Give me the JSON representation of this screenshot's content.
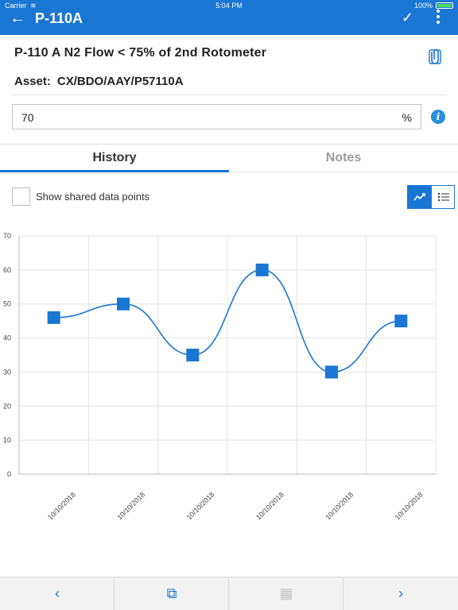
{
  "status_bar": {
    "carrier": "Carrier",
    "time": "5:04 PM",
    "battery": "100%"
  },
  "app_bar": {
    "title": "P-110A",
    "color": "#1976d2"
  },
  "task": {
    "title": "P-110 A N2 Flow < 75% of 2nd Rotometer",
    "asset_label": "Asset:",
    "asset_value": "CX/BDO/AAY/P57110A"
  },
  "reading": {
    "value": "70",
    "unit": "%"
  },
  "tabs": [
    {
      "label": "History",
      "active": true
    },
    {
      "label": "Notes",
      "active": false
    }
  ],
  "shared_points": {
    "label": "Show shared data points",
    "checked": false
  },
  "view_toggle": {
    "selected": "chart",
    "options": [
      "chart-icon",
      "list-icon"
    ]
  },
  "chart_data": {
    "type": "line",
    "smooth": true,
    "marker": "square",
    "color": "#1976d2",
    "categories": [
      "10/10/2018",
      "10/10/2018",
      "10/10/2018",
      "10/10/2018",
      "10/10/2018",
      "10/10/2018"
    ],
    "values": [
      46,
      50,
      35,
      60,
      30,
      45
    ],
    "ylim": [
      0,
      70
    ],
    "yticks": [
      0,
      10,
      20,
      30,
      40,
      50,
      60,
      70
    ],
    "grid": true,
    "title": "",
    "xlabel": "",
    "ylabel": ""
  },
  "toolbar": {
    "items": [
      {
        "name": "previous-icon",
        "glyph": "‹",
        "enabled": true
      },
      {
        "name": "checklist-icon",
        "glyph": "⧉",
        "enabled": true
      },
      {
        "name": "qr-scan-icon",
        "glyph": "▦",
        "enabled": false
      },
      {
        "name": "next-icon",
        "glyph": "›",
        "enabled": true
      }
    ]
  }
}
